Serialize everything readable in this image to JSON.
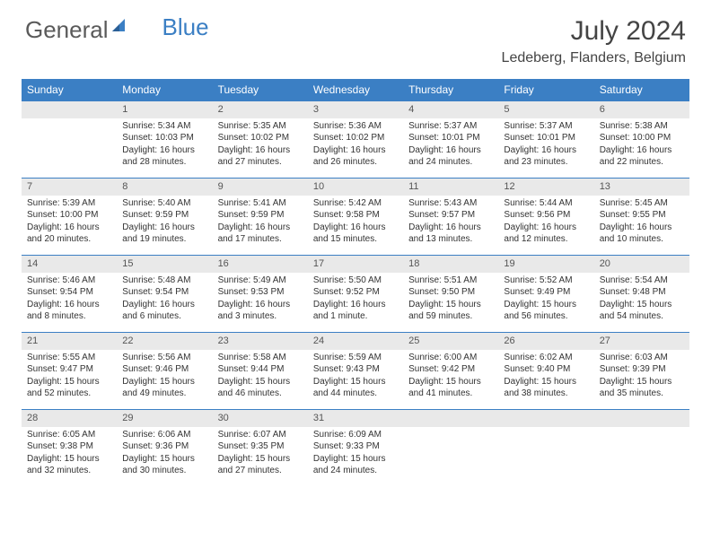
{
  "brand": {
    "part1": "General",
    "part2": "Blue"
  },
  "title": "July 2024",
  "location": "Ledeberg, Flanders, Belgium",
  "colors": {
    "header_bg": "#3b7fc4",
    "header_text": "#ffffff",
    "daynum_bg": "#e9e9e9",
    "daynum_border": "#3b7fc4",
    "body_text": "#333333",
    "page_bg": "#ffffff"
  },
  "typography": {
    "title_fontsize": 30,
    "location_fontsize": 16,
    "dayheader_fontsize": 12,
    "cell_fontsize": 10
  },
  "day_headers": [
    "Sunday",
    "Monday",
    "Tuesday",
    "Wednesday",
    "Thursday",
    "Friday",
    "Saturday"
  ],
  "weeks": [
    [
      null,
      {
        "n": "1",
        "sr": "Sunrise: 5:34 AM",
        "ss": "Sunset: 10:03 PM",
        "dl": "Daylight: 16 hours and 28 minutes."
      },
      {
        "n": "2",
        "sr": "Sunrise: 5:35 AM",
        "ss": "Sunset: 10:02 PM",
        "dl": "Daylight: 16 hours and 27 minutes."
      },
      {
        "n": "3",
        "sr": "Sunrise: 5:36 AM",
        "ss": "Sunset: 10:02 PM",
        "dl": "Daylight: 16 hours and 26 minutes."
      },
      {
        "n": "4",
        "sr": "Sunrise: 5:37 AM",
        "ss": "Sunset: 10:01 PM",
        "dl": "Daylight: 16 hours and 24 minutes."
      },
      {
        "n": "5",
        "sr": "Sunrise: 5:37 AM",
        "ss": "Sunset: 10:01 PM",
        "dl": "Daylight: 16 hours and 23 minutes."
      },
      {
        "n": "6",
        "sr": "Sunrise: 5:38 AM",
        "ss": "Sunset: 10:00 PM",
        "dl": "Daylight: 16 hours and 22 minutes."
      }
    ],
    [
      {
        "n": "7",
        "sr": "Sunrise: 5:39 AM",
        "ss": "Sunset: 10:00 PM",
        "dl": "Daylight: 16 hours and 20 minutes."
      },
      {
        "n": "8",
        "sr": "Sunrise: 5:40 AM",
        "ss": "Sunset: 9:59 PM",
        "dl": "Daylight: 16 hours and 19 minutes."
      },
      {
        "n": "9",
        "sr": "Sunrise: 5:41 AM",
        "ss": "Sunset: 9:59 PM",
        "dl": "Daylight: 16 hours and 17 minutes."
      },
      {
        "n": "10",
        "sr": "Sunrise: 5:42 AM",
        "ss": "Sunset: 9:58 PM",
        "dl": "Daylight: 16 hours and 15 minutes."
      },
      {
        "n": "11",
        "sr": "Sunrise: 5:43 AM",
        "ss": "Sunset: 9:57 PM",
        "dl": "Daylight: 16 hours and 13 minutes."
      },
      {
        "n": "12",
        "sr": "Sunrise: 5:44 AM",
        "ss": "Sunset: 9:56 PM",
        "dl": "Daylight: 16 hours and 12 minutes."
      },
      {
        "n": "13",
        "sr": "Sunrise: 5:45 AM",
        "ss": "Sunset: 9:55 PM",
        "dl": "Daylight: 16 hours and 10 minutes."
      }
    ],
    [
      {
        "n": "14",
        "sr": "Sunrise: 5:46 AM",
        "ss": "Sunset: 9:54 PM",
        "dl": "Daylight: 16 hours and 8 minutes."
      },
      {
        "n": "15",
        "sr": "Sunrise: 5:48 AM",
        "ss": "Sunset: 9:54 PM",
        "dl": "Daylight: 16 hours and 6 minutes."
      },
      {
        "n": "16",
        "sr": "Sunrise: 5:49 AM",
        "ss": "Sunset: 9:53 PM",
        "dl": "Daylight: 16 hours and 3 minutes."
      },
      {
        "n": "17",
        "sr": "Sunrise: 5:50 AM",
        "ss": "Sunset: 9:52 PM",
        "dl": "Daylight: 16 hours and 1 minute."
      },
      {
        "n": "18",
        "sr": "Sunrise: 5:51 AM",
        "ss": "Sunset: 9:50 PM",
        "dl": "Daylight: 15 hours and 59 minutes."
      },
      {
        "n": "19",
        "sr": "Sunrise: 5:52 AM",
        "ss": "Sunset: 9:49 PM",
        "dl": "Daylight: 15 hours and 56 minutes."
      },
      {
        "n": "20",
        "sr": "Sunrise: 5:54 AM",
        "ss": "Sunset: 9:48 PM",
        "dl": "Daylight: 15 hours and 54 minutes."
      }
    ],
    [
      {
        "n": "21",
        "sr": "Sunrise: 5:55 AM",
        "ss": "Sunset: 9:47 PM",
        "dl": "Daylight: 15 hours and 52 minutes."
      },
      {
        "n": "22",
        "sr": "Sunrise: 5:56 AM",
        "ss": "Sunset: 9:46 PM",
        "dl": "Daylight: 15 hours and 49 minutes."
      },
      {
        "n": "23",
        "sr": "Sunrise: 5:58 AM",
        "ss": "Sunset: 9:44 PM",
        "dl": "Daylight: 15 hours and 46 minutes."
      },
      {
        "n": "24",
        "sr": "Sunrise: 5:59 AM",
        "ss": "Sunset: 9:43 PM",
        "dl": "Daylight: 15 hours and 44 minutes."
      },
      {
        "n": "25",
        "sr": "Sunrise: 6:00 AM",
        "ss": "Sunset: 9:42 PM",
        "dl": "Daylight: 15 hours and 41 minutes."
      },
      {
        "n": "26",
        "sr": "Sunrise: 6:02 AM",
        "ss": "Sunset: 9:40 PM",
        "dl": "Daylight: 15 hours and 38 minutes."
      },
      {
        "n": "27",
        "sr": "Sunrise: 6:03 AM",
        "ss": "Sunset: 9:39 PM",
        "dl": "Daylight: 15 hours and 35 minutes."
      }
    ],
    [
      {
        "n": "28",
        "sr": "Sunrise: 6:05 AM",
        "ss": "Sunset: 9:38 PM",
        "dl": "Daylight: 15 hours and 32 minutes."
      },
      {
        "n": "29",
        "sr": "Sunrise: 6:06 AM",
        "ss": "Sunset: 9:36 PM",
        "dl": "Daylight: 15 hours and 30 minutes."
      },
      {
        "n": "30",
        "sr": "Sunrise: 6:07 AM",
        "ss": "Sunset: 9:35 PM",
        "dl": "Daylight: 15 hours and 27 minutes."
      },
      {
        "n": "31",
        "sr": "Sunrise: 6:09 AM",
        "ss": "Sunset: 9:33 PM",
        "dl": "Daylight: 15 hours and 24 minutes."
      },
      null,
      null,
      null
    ]
  ]
}
